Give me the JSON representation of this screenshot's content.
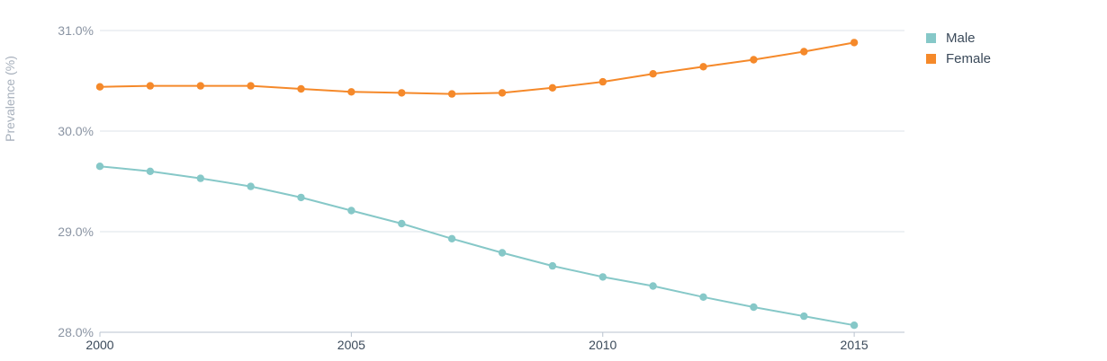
{
  "chart_data": {
    "type": "line",
    "title": "",
    "xlabel": "",
    "ylabel": "Prevalence (%)",
    "x": [
      2000,
      2001,
      2002,
      2003,
      2004,
      2005,
      2006,
      2007,
      2008,
      2009,
      2010,
      2011,
      2012,
      2013,
      2014,
      2015
    ],
    "xlim": [
      2000,
      2016
    ],
    "ylim": [
      28.0,
      31.0
    ],
    "x_ticks": [
      2000,
      2005,
      2010,
      2015
    ],
    "x_tick_labels": [
      "2000",
      "2005",
      "2010",
      "2015"
    ],
    "y_ticks": [
      28.0,
      29.0,
      30.0,
      31.0
    ],
    "y_tick_labels": [
      "28.0%",
      "29.0%",
      "30.0%",
      "31.0%"
    ],
    "grid": true,
    "legend_position": "top-right",
    "series": [
      {
        "name": "Male",
        "color": "#86c8c8",
        "values": [
          29.65,
          29.6,
          29.53,
          29.45,
          29.34,
          29.21,
          29.08,
          28.93,
          28.79,
          28.66,
          28.55,
          28.46,
          28.35,
          28.25,
          28.16,
          28.07
        ]
      },
      {
        "name": "Female",
        "color": "#f5892a",
        "values": [
          30.44,
          30.45,
          30.45,
          30.45,
          30.42,
          30.39,
          30.38,
          30.37,
          30.38,
          30.43,
          30.49,
          30.57,
          30.64,
          30.71,
          30.79,
          30.88
        ]
      }
    ]
  }
}
